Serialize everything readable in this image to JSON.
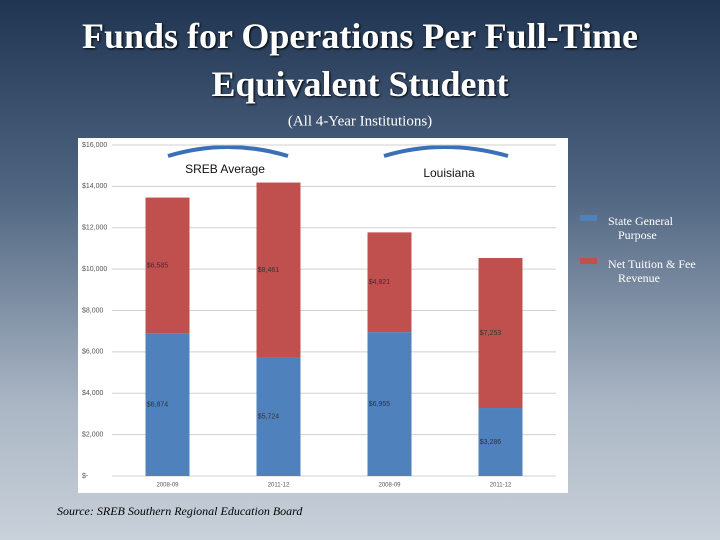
{
  "chart_data": {
    "type": "stacked_bar",
    "title": "Funds for Operations Per Full-Time Equivalent Student",
    "subtitle": "(All 4-Year Institutions)",
    "source": "Source: SREB Southern Regional Education Board",
    "group_labels": [
      "SREB Average",
      "Louisiana"
    ],
    "categories": [
      "2008-09",
      "2011-12",
      "2008-09",
      "2011-12"
    ],
    "series": [
      {
        "name": "State General Purpose",
        "color": "#4f81bd",
        "values": [
          6874,
          5724,
          6955,
          3286
        ],
        "value_labels": [
          "$6,874",
          "$5,724",
          "$6,955",
          "$3,286"
        ]
      },
      {
        "name": "Net Tuition & Fee Revenue",
        "color": "#c0504d",
        "values": [
          6585,
          8461,
          4821,
          7253
        ],
        "value_labels": [
          "$6,585",
          "$8,461",
          "$4,821",
          "$7,253"
        ]
      }
    ],
    "ylim": [
      0,
      16000
    ],
    "yticks": [
      {
        "value": 0,
        "label": "$-"
      },
      {
        "value": 2000,
        "label": "$2,000"
      },
      {
        "value": 4000,
        "label": "$4,000"
      },
      {
        "value": 6000,
        "label": "$6,000"
      },
      {
        "value": 8000,
        "label": "$8,000"
      },
      {
        "value": 10000,
        "label": "$10,000"
      },
      {
        "value": 12000,
        "label": "$12,000"
      },
      {
        "value": 14000,
        "label": "$14,000"
      },
      {
        "value": 16000,
        "label": "$16,000"
      }
    ],
    "grid": true
  }
}
